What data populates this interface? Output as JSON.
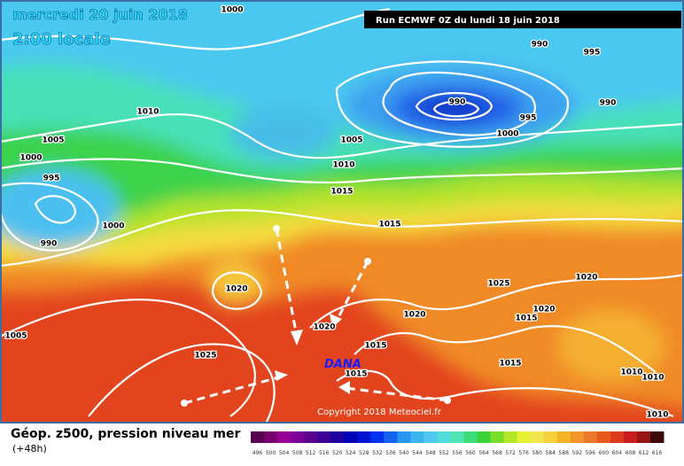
{
  "header": {
    "date": "mercredi 20 juin 2018",
    "time": "2:00 locale",
    "run": "Run ECMWF 0Z du lundi 18 juin 2018"
  },
  "map": {
    "isobar_labels": [
      1000,
      990,
      995,
      990,
      1010,
      995,
      990,
      1005,
      1000,
      1005,
      1000,
      1010,
      995,
      1015,
      1000,
      990,
      1015,
      1020,
      1025,
      1020,
      1020,
      1020,
      1015,
      1020,
      1005,
      1015,
      1025,
      1015,
      1015,
      1010,
      1010,
      1010
    ],
    "annotation": "DANA",
    "copyright": "Copyright 2018 Meteociel.fr"
  },
  "legend": {
    "title": "Géop. z500, pression niveau mer",
    "lead": "(+48h)",
    "scale": [
      496,
      500,
      504,
      508,
      512,
      516,
      520,
      524,
      528,
      532,
      536,
      540,
      544,
      548,
      552,
      556,
      560,
      564,
      568,
      572,
      576,
      580,
      584,
      588,
      592,
      596,
      600,
      604,
      608,
      612,
      616
    ],
    "colors": [
      "#5a0050",
      "#78006e",
      "#960096",
      "#7a0096",
      "#5a008c",
      "#3c0096",
      "#1e00a0",
      "#0000b4",
      "#0014d2",
      "#0032f0",
      "#1464f0",
      "#2896f0",
      "#3cb4f0",
      "#50c8f0",
      "#50dcdc",
      "#50e6b4",
      "#3cdc78",
      "#3cd23c",
      "#78dc28",
      "#b4e628",
      "#e6f032",
      "#f0e650",
      "#f5d23c",
      "#f5b428",
      "#f09628",
      "#eb7828",
      "#e65a1e",
      "#dc3c1e",
      "#c81e1e",
      "#961414",
      "#3c0a0a"
    ]
  }
}
